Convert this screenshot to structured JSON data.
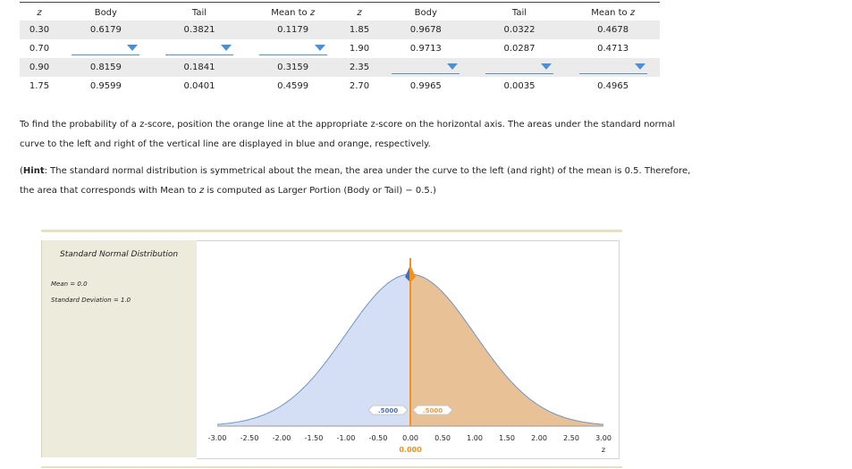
{
  "table": {
    "headers": [
      "z",
      "Body",
      "Tail",
      "Mean to z",
      "z",
      "Body",
      "Tail",
      "Mean to z"
    ],
    "rows": [
      [
        "0.30",
        "0.6179",
        "0.3821",
        "0.1179",
        "1.85",
        "0.9678",
        "0.0322",
        "0.4678"
      ],
      [
        "0.70",
        "",
        "",
        "",
        "1.90",
        "0.9713",
        "0.0287",
        "0.4713"
      ],
      [
        "0.90",
        "0.8159",
        "0.1841",
        "0.3159",
        "2.35",
        "",
        "",
        ""
      ],
      [
        "1.75",
        "0.9599",
        "0.0401",
        "0.4599",
        "2.70",
        "0.9965",
        "0.0035",
        "0.4965"
      ]
    ]
  },
  "instructions": {
    "line1": "To find the probability of a z-score, position the orange line at the appropriate z-score on the horizontal axis. The areas under the standard normal",
    "line2": "curve to the left and right of the vertical line are displayed in blue and orange, respectively.",
    "hint_open": "(",
    "hint_bold": "Hint",
    "hint_rest1": ": The standard normal distribution is symmetrical about the mean, the area under the curve to the left (and right) of the mean is 0.5. Therefore,",
    "hint_rest2_a": "the area that corresponds with Mean to ",
    "hint_rest2_z": "z",
    "hint_rest2_b": " is computed as Larger Portion (Body or Tail) − 0.5.)"
  },
  "panel": {
    "title": "Standard Normal Distribution",
    "mean_label": "Mean = 0.0",
    "sd_label": "Standard Deviation = 1.0"
  },
  "chart_data": {
    "type": "area",
    "distribution": "standard normal",
    "mean": 0.0,
    "sd": 1.0,
    "xlim": [
      -3.0,
      3.0
    ],
    "ticks": [
      "-3.00",
      "-2.50",
      "-2.00",
      "-1.50",
      "-1.00",
      "-0.50",
      "0.00",
      "0.50",
      "1.00",
      "1.50",
      "2.00",
      "2.50",
      "3.00"
    ],
    "xlabel": "z",
    "z_position": 0.0,
    "z_readout": "0.000",
    "left_area_label": ".5000",
    "right_area_label": ".5000",
    "colors": {
      "left_fill": "#d4def4",
      "right_fill": "#e8c197",
      "curve": "#6f95c9",
      "z_line": "#f0931e",
      "left_label": "#3f6fc0",
      "right_label": "#e89a45"
    }
  }
}
